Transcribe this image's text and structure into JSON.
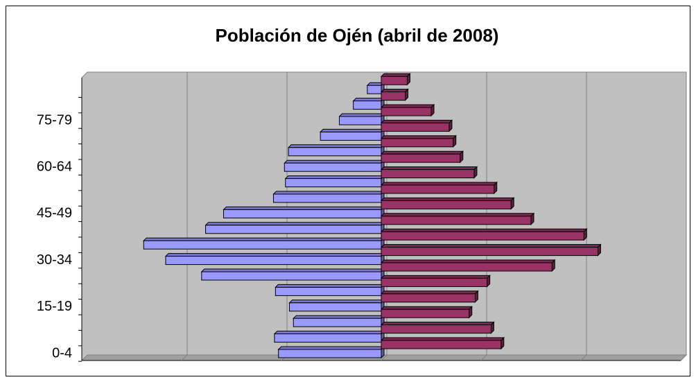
{
  "chart_data": {
    "type": "pyramid",
    "title": "Población de Ojén (abril de 2008)",
    "categories": [
      "0-4",
      null,
      null,
      "15-19",
      null,
      null,
      "30-34",
      null,
      null,
      "45-49",
      null,
      null,
      "60-64",
      null,
      null,
      "75-79",
      null,
      null
    ],
    "series": [
      {
        "color": "#9999ff",
        "side": "left",
        "values": [
          103,
          107,
          88,
          92,
          106,
          180,
          216,
          238,
          176,
          158,
          108,
          96,
          97,
          93,
          61,
          42,
          28,
          14
        ]
      },
      {
        "color": "#993366",
        "side": "right",
        "values": [
          120,
          110,
          88,
          94,
          106,
          171,
          217,
          203,
          150,
          130,
          113,
          93,
          79,
          72,
          68,
          50,
          24,
          26
        ]
      }
    ],
    "xlim": [
      -300,
      300
    ],
    "xticks": [
      -200,
      -100,
      0,
      100,
      200
    ],
    "grid": true
  }
}
